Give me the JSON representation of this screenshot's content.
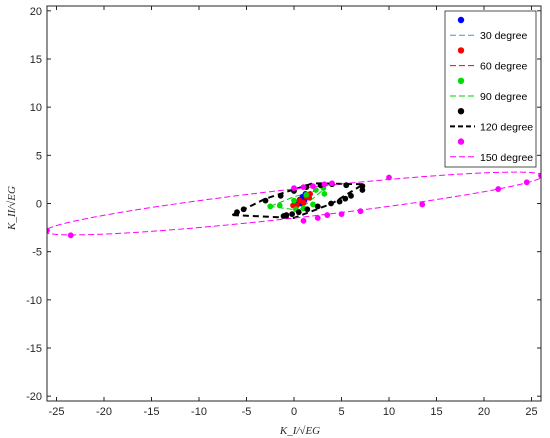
{
  "chart_data": {
    "type": "scatter",
    "title": "",
    "xlabel": "K_I/√EG",
    "ylabel": "K_II/√EG",
    "xlim": [
      -26,
      26
    ],
    "ylim": [
      -20.5,
      20.5
    ],
    "xticks": [
      -25,
      -20,
      -15,
      -10,
      -5,
      0,
      5,
      10,
      15,
      20,
      25
    ],
    "yticks": [
      -20,
      -15,
      -10,
      -5,
      0,
      5,
      10,
      15,
      20
    ],
    "xtick_labels": [
      "-25",
      "-20",
      "-15",
      "-10",
      "-5",
      "0",
      "5",
      "10",
      "15",
      "20",
      "25"
    ],
    "ytick_labels": [
      "-20",
      "-15",
      "-10",
      "-5",
      "0",
      "5",
      "10",
      "15",
      "20"
    ],
    "grid": false,
    "legend_position": "top-right",
    "legend": [
      {
        "label": "",
        "kind": "marker",
        "color": "#0000ff"
      },
      {
        "label": "30 degree",
        "kind": "dash",
        "color": "#4a90d9",
        "width": 1
      },
      {
        "label": "",
        "kind": "marker",
        "color": "#ff0000"
      },
      {
        "label": "60 degree",
        "kind": "dash",
        "color": "#ff0000",
        "width": 1
      },
      {
        "label": "",
        "kind": "marker",
        "color": "#00dd00"
      },
      {
        "label": "90 degree",
        "kind": "dash",
        "color": "#00cc00",
        "width": 1
      },
      {
        "label": "",
        "kind": "marker",
        "color": "#000000"
      },
      {
        "label": "120 degree",
        "kind": "dash",
        "color": "#000000",
        "width": 2
      },
      {
        "label": "",
        "kind": "marker",
        "color": "#ff00ff"
      },
      {
        "label": "150 degree",
        "kind": "dash",
        "color": "#ff00ff",
        "width": 1
      }
    ],
    "series": [
      {
        "label": "30 degree",
        "line_color": "#4a90d9",
        "marker_color": "#0000ff",
        "line_width": 1,
        "line": [
          [
            0.3,
            0.0
          ],
          [
            0.9,
            0.6
          ],
          [
            1.4,
            1.2
          ],
          [
            1.0,
            0.3
          ],
          [
            0.3,
            0.0
          ]
        ],
        "points": [
          [
            0.2,
            0.1
          ],
          [
            0.6,
            0.4
          ],
          [
            0.9,
            0.7
          ],
          [
            1.2,
            1.0
          ],
          [
            1.4,
            0.9
          ],
          [
            1.1,
            0.3
          ],
          [
            0.7,
            0.0
          ]
        ]
      },
      {
        "label": "60 degree",
        "line_color": "#ff0000",
        "marker_color": "#ff0000",
        "line_width": 1,
        "line": [
          [
            -0.2,
            -0.2
          ],
          [
            0.8,
            0.4
          ],
          [
            1.8,
            1.0
          ],
          [
            1.2,
            0.2
          ],
          [
            -0.2,
            -0.2
          ]
        ],
        "points": [
          [
            -0.1,
            -0.2
          ],
          [
            0.6,
            0.3
          ],
          [
            1.3,
            0.7
          ],
          [
            1.7,
            1.0
          ],
          [
            1.6,
            0.6
          ],
          [
            1.0,
            0.1
          ],
          [
            0.3,
            -0.2
          ]
        ]
      },
      {
        "label": "90 degree",
        "line_color": "#00cc00",
        "marker_color": "#00dd00",
        "line_width": 1,
        "line": [
          [
            -2.5,
            -0.3
          ],
          [
            0.0,
            0.7
          ],
          [
            3.3,
            1.6
          ],
          [
            0.5,
            -0.7
          ],
          [
            -2.5,
            -0.3
          ]
        ],
        "points": [
          [
            -2.5,
            -0.3
          ],
          [
            -1.5,
            -0.2
          ],
          [
            0.0,
            0.3
          ],
          [
            1.3,
            0.9
          ],
          [
            2.3,
            1.4
          ],
          [
            3.1,
            1.6
          ],
          [
            3.2,
            1.0
          ],
          [
            2.0,
            -0.1
          ],
          [
            1.0,
            -0.5
          ],
          [
            0.2,
            -0.6
          ]
        ]
      },
      {
        "label": "120 degree",
        "line_color": "#000000",
        "marker_color": "#000000",
        "line_width": 2,
        "line": [
          [
            -6.5,
            -1.2
          ],
          [
            -3.0,
            0.5
          ],
          [
            2.0,
            2.1
          ],
          [
            7.3,
            2.0
          ],
          [
            4.0,
            0.0
          ],
          [
            0.0,
            -1.5
          ],
          [
            -6.5,
            -1.2
          ]
        ],
        "points": [
          [
            -6.0,
            -0.9
          ],
          [
            -5.3,
            -0.6
          ],
          [
            -3.0,
            0.3
          ],
          [
            -1.4,
            0.8
          ],
          [
            0.0,
            1.3
          ],
          [
            1.3,
            1.7
          ],
          [
            2.8,
            1.9
          ],
          [
            4.0,
            2.0
          ],
          [
            5.5,
            1.9
          ],
          [
            7.2,
            1.8
          ],
          [
            7.2,
            1.4
          ],
          [
            6.0,
            0.8
          ],
          [
            5.4,
            0.5
          ],
          [
            4.8,
            0.2
          ],
          [
            3.9,
            0.0
          ],
          [
            2.5,
            -0.3
          ],
          [
            1.4,
            -0.6
          ],
          [
            0.5,
            -0.9
          ],
          [
            -0.2,
            -1.1
          ],
          [
            -0.8,
            -1.2
          ],
          [
            -1.1,
            -1.3
          ]
        ]
      },
      {
        "label": "150 degree",
        "line_color": "#ff00ff",
        "marker_color": "#ff00ff",
        "line_width": 1,
        "line": "ellipse",
        "ellipse": {
          "cx": 0.0,
          "cy": 0.0,
          "a": 26.4,
          "b": 1.5,
          "angle_deg": 6.3
        },
        "points": [
          [
            -26.0,
            -2.8
          ],
          [
            -23.5,
            -3.3
          ],
          [
            0.0,
            1.6
          ],
          [
            1.0,
            1.7
          ],
          [
            2.0,
            1.8
          ],
          [
            3.2,
            2.0
          ],
          [
            4.0,
            2.1
          ],
          [
            10.0,
            2.7
          ],
          [
            1.0,
            -1.8
          ],
          [
            2.5,
            -1.5
          ],
          [
            3.5,
            -1.2
          ],
          [
            5.0,
            -1.1
          ],
          [
            7.0,
            -0.8
          ],
          [
            13.5,
            -0.1
          ],
          [
            21.5,
            1.5
          ],
          [
            24.5,
            2.2
          ],
          [
            26.0,
            2.9
          ]
        ]
      }
    ]
  }
}
